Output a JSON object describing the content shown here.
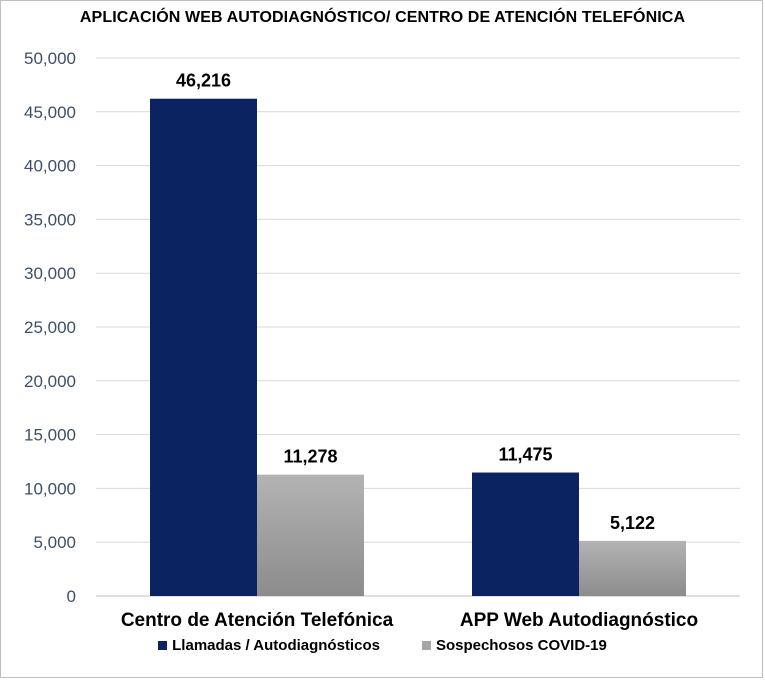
{
  "chart_data": {
    "type": "bar",
    "title": "APLICACIÓN WEB AUTODIAGNÓSTICO/ CENTRO DE ATENCIÓN TELEFÓNICA",
    "categories": [
      "Centro de Atención Telefónica",
      "APP Web Autodiagnóstico"
    ],
    "series": [
      {
        "name": "Llamadas / Autodiagnósticos",
        "values": [
          46216,
          11475
        ],
        "labels": [
          "46,216",
          "11,475"
        ],
        "color": "#0c2361"
      },
      {
        "name": "Sospechosos COVID-19",
        "values": [
          11278,
          5122
        ],
        "labels": [
          "11,278",
          "5,122"
        ],
        "color": "#a6a6a6"
      }
    ],
    "ylim": [
      0,
      50000
    ],
    "yticks": [
      0,
      5000,
      10000,
      15000,
      20000,
      25000,
      30000,
      35000,
      40000,
      45000,
      50000
    ],
    "ytick_labels": [
      "0",
      "5,000",
      "10,000",
      "15,000",
      "20,000",
      "25,000",
      "30,000",
      "35,000",
      "40,000",
      "45,000",
      "50,000"
    ],
    "xlabel": "",
    "ylabel": "",
    "grid": true,
    "legend_position": "bottom"
  }
}
